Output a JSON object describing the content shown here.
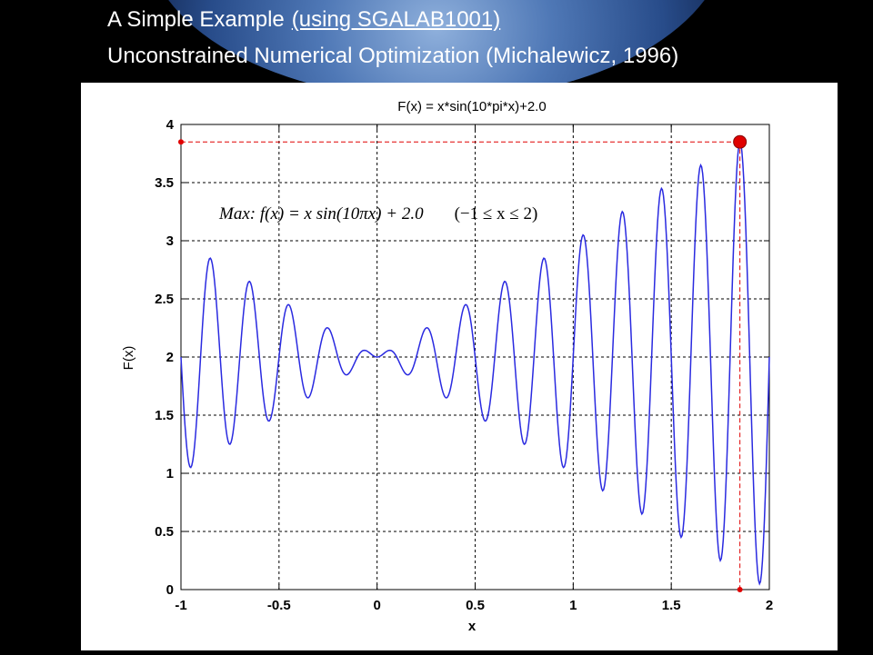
{
  "slide": {
    "title_line1_a": "A Simple Example",
    "title_line1_b": "(using  SGALAB1001)",
    "title_line2": "Unconstrained Numerical Optimization (Michalewicz, 1996)"
  },
  "formula": {
    "max_label": "Max",
    "expression": ": f(x) = x sin(10πx) + 2.0",
    "range": "(−1 ≤ x ≤ 2)"
  },
  "chart_data": {
    "type": "line",
    "title": "F(x) = x*sin(10*pi*x)+2.0",
    "xlabel": "x",
    "ylabel": "F(x)",
    "xlim": [
      -1,
      2
    ],
    "ylim": [
      0,
      4
    ],
    "x_ticks": [
      "-1",
      "-0.5",
      "0",
      "0.5",
      "1",
      "1.5",
      "2"
    ],
    "y_ticks": [
      "0",
      "0.5",
      "1",
      "1.5",
      "2",
      "2.5",
      "3",
      "3.5",
      "4"
    ],
    "grid": true,
    "function": "x*sin(10*pi*x)+2.0",
    "sample_step": 0.005,
    "max_point": {
      "x": 1.85,
      "y": 3.85
    },
    "colors": {
      "line": "#2a2ae0",
      "marker": "#e00000"
    }
  }
}
